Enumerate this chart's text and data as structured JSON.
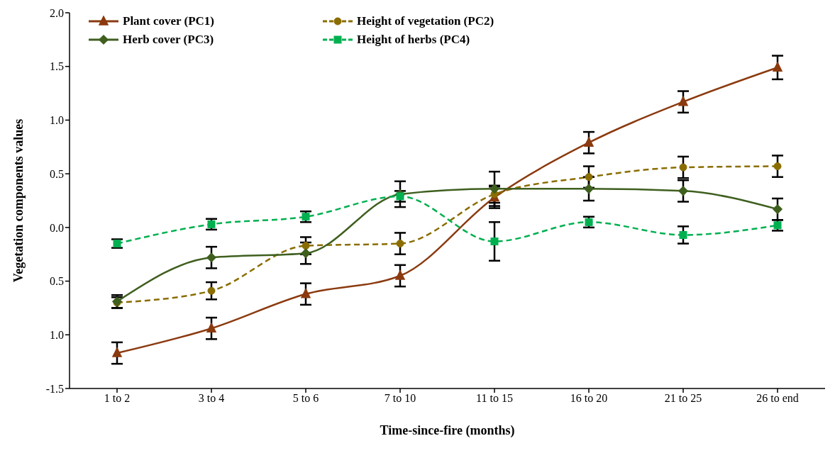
{
  "chart_data": {
    "type": "line",
    "xlabel": "Time-since-fire (months)",
    "ylabel": "Vegetation components values",
    "categories": [
      "1 to 2",
      "3 to 4",
      "5 to 6",
      "7 to 10",
      "11 to 15",
      "16 to 20",
      "21 to 25",
      "26 to end"
    ],
    "ylim": [
      -1.5,
      2.0
    ],
    "yticks": [
      {
        "value": -1.5,
        "label": "-1.5"
      },
      {
        "value": -1,
        "label": "1.0"
      },
      {
        "value": -0.5,
        "label": "0.5"
      },
      {
        "value": 0,
        "label": "0.0"
      },
      {
        "value": 0.5,
        "label": "0.5"
      },
      {
        "value": 1,
        "label": "1.0"
      },
      {
        "value": 1.5,
        "label": "1.5"
      },
      {
        "value": 2,
        "label": "2.0"
      }
    ],
    "grid": false,
    "legend": "top left",
    "series": [
      {
        "name": "Plant cover (PC1)",
        "color": "#8b3a0f",
        "marker": "triangle",
        "line_style": "solid",
        "values": [
          -1.17,
          -0.94,
          -0.62,
          -0.45,
          0.28,
          0.79,
          1.17,
          1.49
        ],
        "errors": [
          0.1,
          0.1,
          0.1,
          0.1,
          0.1,
          0.1,
          0.1,
          0.11
        ]
      },
      {
        "name": "Height of vegetation (PC2)",
        "color": "#8a6d00",
        "marker": "circle",
        "line_style": "dashed",
        "values": [
          -0.7,
          -0.59,
          -0.17,
          -0.15,
          0.31,
          0.47,
          0.56,
          0.57
        ],
        "errors": [
          0.05,
          0.08,
          0.08,
          0.1,
          0.08,
          0.1,
          0.1,
          0.1
        ]
      },
      {
        "name": "Herb cover (PC3)",
        "color": "#3f5f1f",
        "marker": "diamond",
        "line_style": "solid",
        "values": [
          -0.69,
          -0.28,
          -0.24,
          0.31,
          0.36,
          0.36,
          0.34,
          0.17
        ],
        "errors": [
          0.06,
          0.1,
          0.1,
          0.12,
          0.16,
          0.11,
          0.1,
          0.1
        ]
      },
      {
        "name": "Height of herbs (PC4)",
        "color": "#00b050",
        "marker": "square",
        "line_style": "dashed",
        "values": [
          -0.15,
          0.03,
          0.1,
          0.29,
          -0.13,
          0.05,
          -0.07,
          0.02
        ],
        "errors": [
          0.04,
          0.05,
          0.05,
          0.05,
          0.18,
          0.05,
          0.08,
          0.05
        ]
      }
    ]
  }
}
